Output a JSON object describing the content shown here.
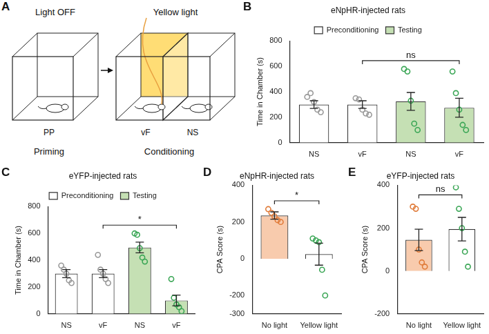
{
  "diagram": {
    "panel": "A",
    "stages": [
      {
        "heading": "Light OFF",
        "chambers": [
          {
            "label": "PP"
          }
        ],
        "caption": "Priming"
      },
      {
        "heading": "Yellow light",
        "chambers": [
          {
            "label": "vF",
            "color": "#ffd966"
          },
          {
            "label": "NS"
          }
        ],
        "caption": "Conditioning"
      }
    ]
  },
  "chart_data": [
    {
      "panel": "B",
      "type": "bar",
      "title": "eNpHR-injected rats",
      "ylabel": "Time in Chamber (s)",
      "categories": [
        "NS",
        "vF",
        "NS",
        "vF"
      ],
      "series": [
        {
          "name": "Preconditioning",
          "color": "#ffffff",
          "values": [
            300,
            300,
            null,
            null
          ],
          "errors": [
            30,
            30,
            null,
            null
          ],
          "points": {
            "color": "#999999",
            "marker": "circle",
            "values": [
              [
                360,
                390,
                320,
                260,
                240
              ],
              [
                350,
                340,
                260,
                230,
                220
              ],
              null,
              null
            ]
          }
        },
        {
          "name": "Testing",
          "color": "#c5e0b4",
          "values": [
            null,
            null,
            325,
            275
          ],
          "errors": [
            null,
            null,
            70,
            75
          ],
          "points": {
            "color": "#3aa655",
            "marker": "circle",
            "values": [
              null,
              null,
              [
                580,
                560,
                330,
                150,
                100
              ],
              [
                560,
                390,
                260,
                140,
                100
              ]
            ]
          }
        }
      ],
      "ylim": [
        0,
        800
      ],
      "yticks": [
        0,
        200,
        400,
        600,
        800
      ],
      "grid": false,
      "legend": "top",
      "annotations": [
        {
          "text": "ns",
          "from": 1,
          "to": 3
        }
      ]
    },
    {
      "panel": "C",
      "type": "bar",
      "title": "eYFP-injected rats",
      "ylabel": "Time in Chamber (s)",
      "categories": [
        "NS",
        "vF",
        "NS",
        "vF"
      ],
      "series": [
        {
          "name": "Preconditioning",
          "color": "#ffffff",
          "values": [
            300,
            300,
            null,
            null
          ],
          "errors": [
            30,
            30,
            null,
            null
          ],
          "points": {
            "color": "#999999",
            "marker": "circle",
            "values": [
              [
                360,
                330,
                300,
                250,
                230
              ],
              [
                440,
                330,
                300,
                260,
                230
              ],
              null,
              null
            ]
          }
        },
        {
          "name": "Testing",
          "color": "#c5e0b4",
          "values": [
            null,
            null,
            495,
            100
          ],
          "errors": [
            null,
            null,
            40,
            40
          ],
          "points": {
            "color": "#3aa655",
            "marker": "circle",
            "values": [
              null,
              null,
              [
                600,
                590,
                490,
                420,
                390
              ],
              [
                260,
                120,
                70,
                50,
                20
              ]
            ]
          }
        }
      ],
      "ylim": [
        0,
        800
      ],
      "yticks": [
        0,
        200,
        400,
        600,
        800
      ],
      "grid": false,
      "legend": "top",
      "annotations": [
        {
          "text": "*",
          "from": 1,
          "to": 3
        }
      ]
    },
    {
      "panel": "D",
      "type": "bar",
      "title": "eNpHR-injected rats",
      "ylabel": "CPA Score (s)",
      "categories": [
        "No light",
        "Yellow light"
      ],
      "values": [
        235,
        25
      ],
      "errors": [
        20,
        60
      ],
      "colors": [
        "#f8cbad",
        "#ffffff"
      ],
      "points": {
        "colors": [
          "#e07b39",
          "#3aa655"
        ],
        "marker": "circle",
        "values": [
          [
            270,
            250,
            230,
            210,
            200
          ],
          [
            110,
            100,
            90,
            -60,
            -200
          ]
        ]
      },
      "ylim": [
        -300,
        400
      ],
      "yticks": [
        -300,
        -200,
        0,
        200,
        400
      ],
      "grid": false,
      "annotations": [
        {
          "text": "*",
          "from": 0,
          "to": 1
        }
      ]
    },
    {
      "panel": "E",
      "type": "bar",
      "title": "eYFP-injected rats",
      "ylabel": "CPA Score (s)",
      "categories": [
        "No light",
        "Yellow light"
      ],
      "values": [
        145,
        195
      ],
      "errors": [
        50,
        55
      ],
      "colors": [
        "#f8cbad",
        "#ffffff"
      ],
      "points": {
        "colors": [
          "#e07b39",
          "#3aa655"
        ],
        "marker": "circle",
        "values": [
          [
            300,
            290,
            100,
            40,
            20
          ],
          [
            390,
            290,
            200,
            90,
            20
          ]
        ]
      },
      "ylim": [
        -200,
        400
      ],
      "yticks": [
        -200,
        0,
        200,
        400
      ],
      "grid": false,
      "annotations": [
        {
          "text": "ns",
          "from": 0,
          "to": 1
        }
      ]
    }
  ]
}
